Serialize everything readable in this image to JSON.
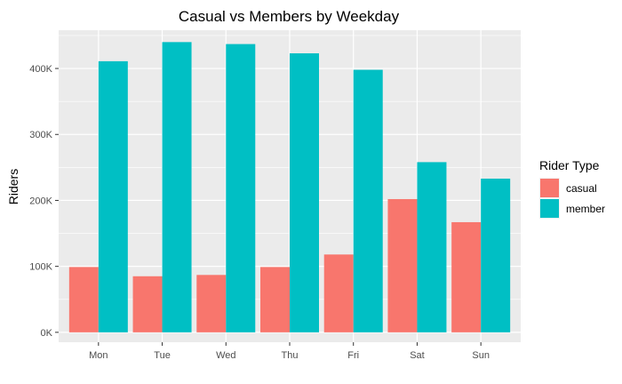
{
  "chart_data": {
    "type": "bar",
    "title": "Casual vs Members by Weekday",
    "xlabel": "",
    "ylabel": "Riders",
    "categories": [
      "Mon",
      "Tue",
      "Wed",
      "Thu",
      "Fri",
      "Sat",
      "Sun"
    ],
    "series": [
      {
        "name": "casual",
        "color": "#F8766D",
        "values": [
          99000,
          85000,
          87000,
          99000,
          118000,
          202000,
          167000
        ]
      },
      {
        "name": "member",
        "color": "#00BFC4",
        "values": [
          411000,
          440000,
          437000,
          423000,
          398000,
          258000,
          233000
        ]
      }
    ],
    "ylim": [
      0,
      450000
    ],
    "yticks": [
      0,
      100000,
      200000,
      300000,
      400000
    ],
    "ytick_labels": [
      "0K",
      "100K",
      "200K",
      "300K",
      "400K"
    ],
    "legend": {
      "title": "Rider Type",
      "position": "right"
    },
    "grid": true,
    "panel_background": "#EBEBEB",
    "grid_color": "#FFFFFF"
  }
}
